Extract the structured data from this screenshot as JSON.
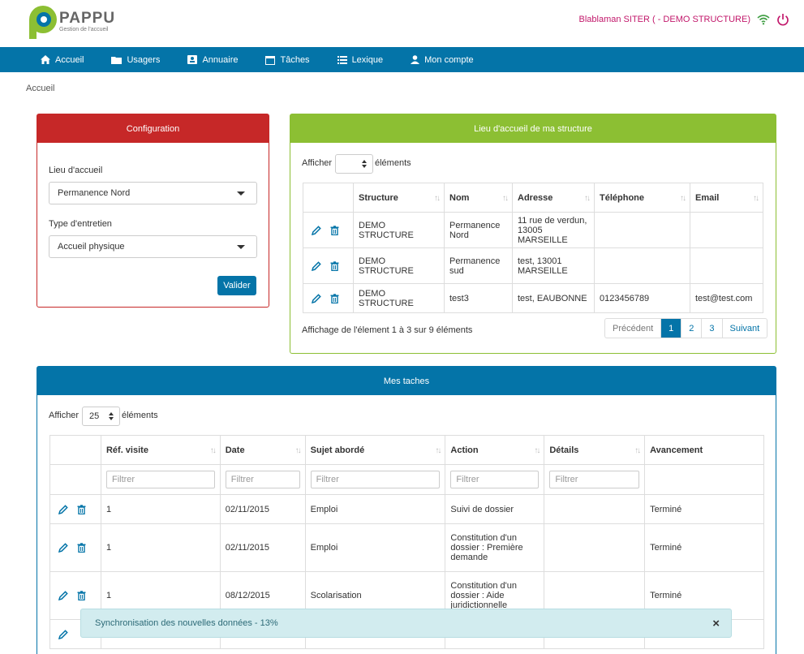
{
  "header": {
    "logo_title": "PAPPU",
    "logo_subtitle": "Gestion de l'accueil",
    "user_label": "Blablaman SITER ( - DEMO STRUCTURE)"
  },
  "nav": {
    "items": [
      {
        "label": "Accueil",
        "icon": "home-icon"
      },
      {
        "label": "Usagers",
        "icon": "folder-icon"
      },
      {
        "label": "Annuaire",
        "icon": "contact-card-icon"
      },
      {
        "label": "Tâches",
        "icon": "calendar-icon"
      },
      {
        "label": "Lexique",
        "icon": "list-icon"
      },
      {
        "label": "Mon compte",
        "icon": "user-icon"
      }
    ]
  },
  "breadcrumb": "Accueil",
  "config": {
    "title": "Configuration",
    "lieu_label": "Lieu d'accueil",
    "lieu_value": "Permanence Nord",
    "type_label": "Type d'entretien",
    "type_value": "Accueil physique",
    "submit_label": "Valider"
  },
  "lieu": {
    "title": "Lieu d'accueil de ma structure",
    "show_prefix": "Afficher",
    "show_suffix": "éléments",
    "columns": [
      "Structure",
      "Nom",
      "Adresse",
      "Téléphone",
      "Email"
    ],
    "rows": [
      {
        "structure": "DEMO STRUCTURE",
        "nom": "Permanence Nord",
        "adresse": "11 rue de verdun, 13005 MARSEILLE",
        "telephone": "",
        "email": ""
      },
      {
        "structure": "DEMO STRUCTURE",
        "nom": "Permanence sud",
        "adresse": "test, 13001 MARSEILLE",
        "telephone": "",
        "email": ""
      },
      {
        "structure": "DEMO STRUCTURE",
        "nom": "test3",
        "adresse": "test, EAUBONNE",
        "telephone": "0123456789",
        "email": "test@test.com"
      }
    ],
    "info": "Affichage de l'élement 1 à 3 sur 9 éléments",
    "pager": {
      "prev": "Précédent",
      "pages": [
        "1",
        "2",
        "3"
      ],
      "next": "Suivant"
    }
  },
  "taches": {
    "title": "Mes taches",
    "show_prefix": "Afficher",
    "show_value": "25",
    "show_suffix": "éléments",
    "columns": [
      "Réf. visite",
      "Date",
      "Sujet abordé",
      "Action",
      "Détails",
      "Avancement"
    ],
    "filter_placeholder": "Filtrer",
    "rows": [
      {
        "ref": "1",
        "date": "02/11/2015",
        "sujet": "Emploi",
        "action": "Suivi de dossier",
        "details": "",
        "avancement": "Terminé"
      },
      {
        "ref": "1",
        "date": "02/11/2015",
        "sujet": "Emploi",
        "action": "Constitution d'un dossier : Première demande",
        "details": "",
        "avancement": "Terminé"
      },
      {
        "ref": "1",
        "date": "08/12/2015",
        "sujet": "Scolarisation",
        "action": "Constitution d'un dossier : Aide juridictionnelle",
        "details": "",
        "avancement": "Terminé"
      }
    ]
  },
  "toast": {
    "text": "Synchronisation des nouvelles données - 13%",
    "close": "×"
  }
}
